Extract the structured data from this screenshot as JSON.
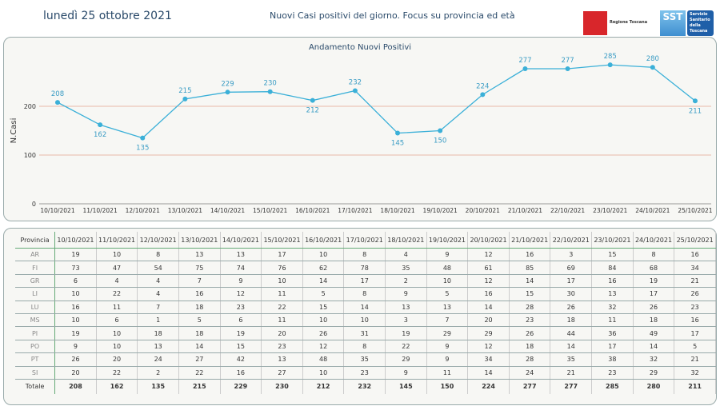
{
  "header": {
    "date": "lunedì 25 ottobre 2021",
    "title": "Nuovi Casi positivi del giorno. Focus su provincia ed età",
    "logo_regione": "Regione Toscana",
    "logo_sst": "SST",
    "logo_sst_text": "Servizio Sanitario della Toscana"
  },
  "colors": {
    "line": "#3bb0d8",
    "grid": "#e8b8a8",
    "label": "#3a9cc4"
  },
  "chart_data": {
    "type": "line",
    "title": "Andamento Nuovi Positivi",
    "xlabel": "",
    "ylabel": "N.Casi",
    "ylim": [
      0,
      300
    ],
    "yticks": [
      0,
      100,
      200
    ],
    "categories": [
      "10/10/2021",
      "11/10/2021",
      "12/10/2021",
      "13/10/2021",
      "14/10/2021",
      "15/10/2021",
      "16/10/2021",
      "17/10/2021",
      "18/10/2021",
      "19/10/2021",
      "20/10/2021",
      "21/10/2021",
      "22/10/2021",
      "23/10/2021",
      "24/10/2021",
      "25/10/2021"
    ],
    "values": [
      208,
      162,
      135,
      215,
      229,
      230,
      212,
      232,
      145,
      150,
      224,
      277,
      277,
      285,
      280,
      211
    ]
  },
  "table": {
    "header_label": "Provincia",
    "rows": [
      {
        "prov": "AR",
        "values": [
          19,
          10,
          8,
          13,
          13,
          17,
          10,
          8,
          4,
          9,
          12,
          16,
          3,
          15,
          8,
          16
        ]
      },
      {
        "prov": "FI",
        "values": [
          73,
          47,
          54,
          75,
          74,
          76,
          62,
          78,
          35,
          48,
          61,
          85,
          69,
          84,
          68,
          34
        ]
      },
      {
        "prov": "GR",
        "values": [
          6,
          4,
          4,
          7,
          9,
          10,
          14,
          17,
          2,
          10,
          12,
          14,
          17,
          16,
          19,
          21
        ]
      },
      {
        "prov": "LI",
        "values": [
          10,
          22,
          4,
          16,
          12,
          11,
          5,
          8,
          9,
          5,
          16,
          15,
          30,
          13,
          17,
          26
        ]
      },
      {
        "prov": "LU",
        "values": [
          16,
          11,
          7,
          18,
          23,
          22,
          15,
          14,
          13,
          13,
          14,
          28,
          26,
          32,
          26,
          23
        ]
      },
      {
        "prov": "MS",
        "values": [
          10,
          6,
          1,
          5,
          6,
          11,
          10,
          10,
          3,
          7,
          20,
          23,
          18,
          11,
          18,
          16
        ]
      },
      {
        "prov": "PI",
        "values": [
          19,
          10,
          18,
          18,
          19,
          20,
          26,
          31,
          19,
          29,
          29,
          26,
          44,
          36,
          49,
          17
        ]
      },
      {
        "prov": "PO",
        "values": [
          9,
          10,
          13,
          14,
          15,
          23,
          12,
          8,
          22,
          9,
          12,
          18,
          14,
          17,
          14,
          5
        ]
      },
      {
        "prov": "PT",
        "values": [
          26,
          20,
          24,
          27,
          42,
          13,
          48,
          35,
          29,
          9,
          34,
          28,
          35,
          38,
          32,
          21
        ]
      },
      {
        "prov": "SI",
        "values": [
          20,
          22,
          2,
          22,
          16,
          27,
          10,
          23,
          9,
          11,
          14,
          24,
          21,
          23,
          29,
          32
        ]
      }
    ],
    "total_label": "Totale",
    "totals": [
      208,
      162,
      135,
      215,
      229,
      230,
      212,
      232,
      145,
      150,
      224,
      277,
      277,
      285,
      280,
      211
    ]
  }
}
